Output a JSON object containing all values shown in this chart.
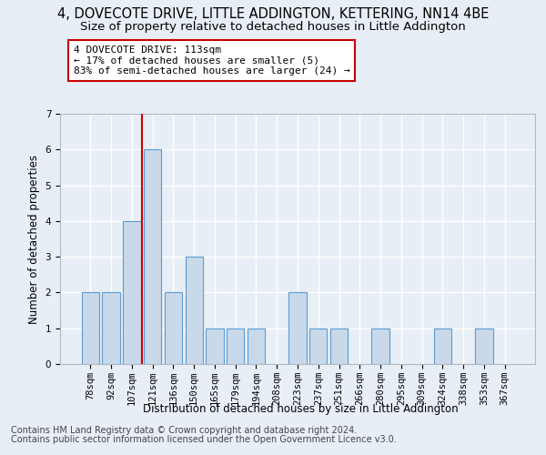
{
  "title_line1": "4, DOVECOTE DRIVE, LITTLE ADDINGTON, KETTERING, NN14 4BE",
  "title_line2": "Size of property relative to detached houses in Little Addington",
  "xlabel": "Distribution of detached houses by size in Little Addington",
  "ylabel": "Number of detached properties",
  "footnote1": "Contains HM Land Registry data © Crown copyright and database right 2024.",
  "footnote2": "Contains public sector information licensed under the Open Government Licence v3.0.",
  "categories": [
    "78sqm",
    "92sqm",
    "107sqm",
    "121sqm",
    "136sqm",
    "150sqm",
    "165sqm",
    "179sqm",
    "194sqm",
    "208sqm",
    "223sqm",
    "237sqm",
    "251sqm",
    "266sqm",
    "280sqm",
    "295sqm",
    "309sqm",
    "324sqm",
    "338sqm",
    "353sqm",
    "367sqm"
  ],
  "values": [
    2,
    2,
    4,
    6,
    2,
    3,
    1,
    1,
    1,
    0,
    2,
    1,
    1,
    0,
    1,
    0,
    0,
    1,
    0,
    1,
    0
  ],
  "bar_color": "#c9d9ea",
  "bar_edge_color": "#5b9bd5",
  "vline_x_index": 3,
  "vline_color": "#cc0000",
  "annotation_line1": "4 DOVECOTE DRIVE: 113sqm",
  "annotation_line2": "← 17% of detached houses are smaller (5)",
  "annotation_line3": "83% of semi-detached houses are larger (24) →",
  "annotation_box_color": "#cc0000",
  "annotation_box_bg": "#ffffff",
  "ylim": [
    0,
    7
  ],
  "yticks": [
    0,
    1,
    2,
    3,
    4,
    5,
    6,
    7
  ],
  "bg_color": "#e8eef5",
  "grid_color": "#ffffff",
  "title_fontsize": 10.5,
  "subtitle_fontsize": 9.5,
  "axis_label_fontsize": 8.5,
  "tick_fontsize": 7.5,
  "footnote_fontsize": 7
}
